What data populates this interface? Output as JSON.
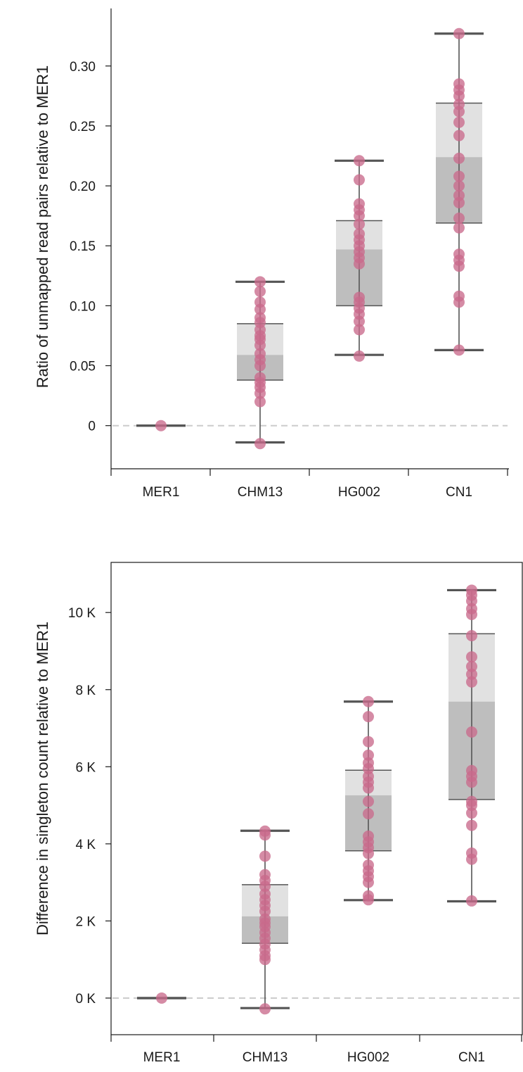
{
  "chart_data": [
    {
      "type": "box",
      "ylabel": "Ratio of unmapped read pairs relative to MER1",
      "categories": [
        "MER1",
        "CHM13",
        "HG002",
        "CN1"
      ],
      "ylim": [
        -0.036,
        0.348
      ],
      "yticks": [
        0,
        0.05,
        0.1,
        0.15,
        0.2,
        0.25,
        0.3
      ],
      "ytick_labels": [
        "0",
        "0.05",
        "0.10",
        "0.15",
        "0.20",
        "0.25",
        "0.30"
      ],
      "reference_line": 0,
      "frame": "left-bottom",
      "boxes": [
        {
          "category": "MER1",
          "whisker_low": 0,
          "q1": 0,
          "median": 0,
          "q3": 0,
          "whisker_high": 0
        },
        {
          "category": "CHM13",
          "whisker_low": -0.014,
          "q1": 0.038,
          "median": 0.059,
          "q3": 0.085,
          "whisker_high": 0.12
        },
        {
          "category": "HG002",
          "whisker_low": 0.059,
          "q1": 0.1,
          "median": 0.147,
          "q3": 0.171,
          "whisker_high": 0.221
        },
        {
          "category": "CN1",
          "whisker_low": 0.063,
          "q1": 0.169,
          "median": 0.224,
          "q3": 0.269,
          "whisker_high": 0.327
        }
      ],
      "points": [
        [
          0
        ],
        [
          -0.015,
          0.02,
          0.027,
          0.032,
          0.036,
          0.04,
          0.05,
          0.055,
          0.06,
          0.067,
          0.072,
          0.075,
          0.08,
          0.086,
          0.09,
          0.097,
          0.103,
          0.112,
          0.12
        ],
        [
          0.058,
          0.08,
          0.087,
          0.093,
          0.098,
          0.103,
          0.107,
          0.135,
          0.14,
          0.145,
          0.15,
          0.155,
          0.16,
          0.168,
          0.175,
          0.18,
          0.185,
          0.205,
          0.221
        ],
        [
          0.063,
          0.103,
          0.108,
          0.133,
          0.138,
          0.143,
          0.165,
          0.173,
          0.186,
          0.192,
          0.2,
          0.208,
          0.223,
          0.242,
          0.253,
          0.262,
          0.268,
          0.275,
          0.28,
          0.285,
          0.327
        ]
      ],
      "colors": {
        "point": "#c96a8c",
        "box_upper": "#e1e1e1",
        "box_lower": "#bebebe",
        "whisker": "#555555",
        "reference": "#cccccc"
      }
    },
    {
      "type": "box",
      "ylabel": "Difference in singleton count relative to MER1",
      "categories": [
        "MER1",
        "CHM13",
        "HG002",
        "CN1"
      ],
      "ylim": [
        -950,
        11300
      ],
      "yticks": [
        0,
        2000,
        4000,
        6000,
        8000,
        10000
      ],
      "ytick_labels": [
        "0 K",
        "2 K",
        "4 K",
        "6 K",
        "8 K",
        "10 K"
      ],
      "reference_line": 0,
      "frame": "full",
      "boxes": [
        {
          "category": "MER1",
          "whisker_low": 0,
          "q1": 0,
          "median": 0,
          "q3": 0,
          "whisker_high": 0
        },
        {
          "category": "CHM13",
          "whisker_low": -260,
          "q1": 1420,
          "median": 2120,
          "q3": 2940,
          "whisker_high": 4340
        },
        {
          "category": "HG002",
          "whisker_low": 2540,
          "q1": 3820,
          "median": 5260,
          "q3": 5910,
          "whisker_high": 7690
        },
        {
          "category": "CN1",
          "whisker_low": 2510,
          "q1": 5150,
          "median": 7690,
          "q3": 9450,
          "whisker_high": 10580
        }
      ],
      "points": [
        [
          0
        ],
        [
          -280,
          1000,
          1100,
          1250,
          1400,
          1550,
          1700,
          1850,
          1950,
          2050,
          2250,
          2400,
          2550,
          2700,
          2900,
          3050,
          3200,
          3680,
          4230,
          4330
        ],
        [
          2550,
          2650,
          3000,
          3150,
          3300,
          3450,
          3750,
          3900,
          4050,
          4200,
          4780,
          5100,
          5450,
          5600,
          5750,
          5950,
          6100,
          6300,
          6650,
          7300,
          7690
        ],
        [
          2520,
          3600,
          3760,
          4480,
          4800,
          5000,
          5100,
          5600,
          5750,
          5900,
          6900,
          8200,
          8400,
          8600,
          8850,
          9400,
          9950,
          10100,
          10300,
          10450,
          10580
        ]
      ],
      "colors": {
        "point": "#c96a8c",
        "box_upper": "#e1e1e1",
        "box_lower": "#bebebe",
        "whisker": "#555555",
        "reference": "#cccccc"
      }
    }
  ]
}
